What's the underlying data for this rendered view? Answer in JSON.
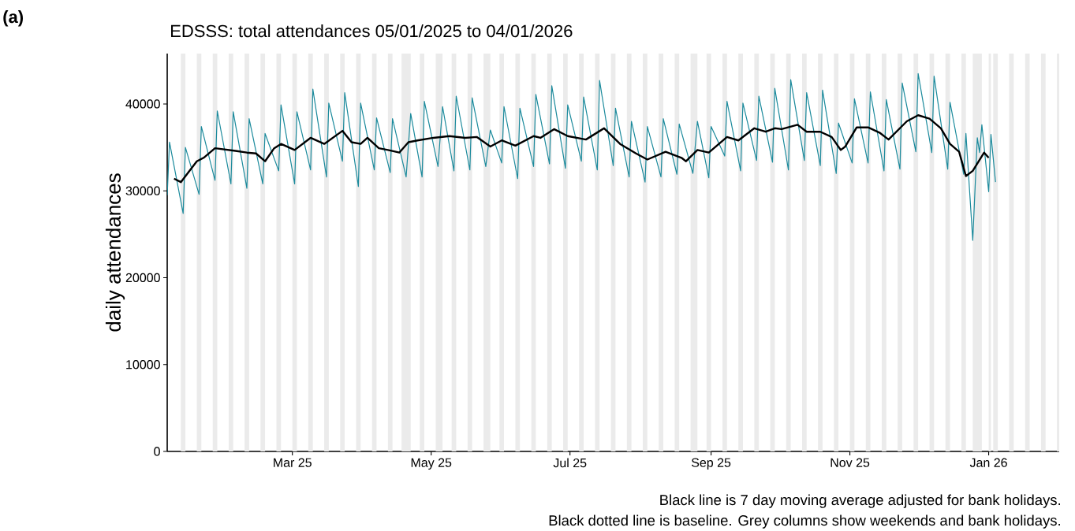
{
  "chart_data": {
    "type": "line",
    "title": "EDSSS: total attendances 05/01/2025 to 04/01/2026",
    "ylabel": "daily attendances",
    "annotations": [
      "(a)",
      "Black line is 7 day moving average adjusted for bank holidays.",
      "Black dotted line is baseline. Grey columns show weekends and bank holidays."
    ],
    "xlim": [
      "2025-01-05",
      "2026-02-01"
    ],
    "ylim": [
      0,
      45800
    ],
    "xticks": [
      {
        "value": "2025-03-01",
        "label": "Mar 25"
      },
      {
        "value": "2025-05-01",
        "label": "May 25"
      },
      {
        "value": "2025-07-01",
        "label": "Jul 25"
      },
      {
        "value": "2025-09-01",
        "label": "Sep 25"
      },
      {
        "value": "2025-11-01",
        "label": "Nov 25"
      },
      {
        "value": "2026-01-01",
        "label": "Jan 26"
      }
    ],
    "yticks": [
      0,
      10000,
      20000,
      30000,
      40000
    ],
    "grid": false,
    "series": [
      {
        "color": "#1b8a9c",
        "x": [
          "2025-01-05",
          "2025-01-06",
          "2025-01-12",
          "2025-01-13",
          "2025-01-19",
          "2025-01-20",
          "2025-01-26",
          "2025-01-27",
          "2025-02-02",
          "2025-02-03",
          "2025-02-09",
          "2025-02-10",
          "2025-02-16",
          "2025-02-17",
          "2025-02-23",
          "2025-02-24",
          "2025-03-02",
          "2025-03-03",
          "2025-03-09",
          "2025-03-10",
          "2025-03-16",
          "2025-03-17",
          "2025-03-23",
          "2025-03-24",
          "2025-03-30",
          "2025-03-31",
          "2025-04-06",
          "2025-04-07",
          "2025-04-13",
          "2025-04-14",
          "2025-04-20",
          "2025-04-22",
          "2025-04-27",
          "2025-04-28",
          "2025-05-04",
          "2025-05-06",
          "2025-05-11",
          "2025-05-12",
          "2025-05-18",
          "2025-05-19",
          "2025-05-25",
          "2025-05-27",
          "2025-06-01",
          "2025-06-02",
          "2025-06-08",
          "2025-06-09",
          "2025-06-15",
          "2025-06-16",
          "2025-06-22",
          "2025-06-23",
          "2025-06-29",
          "2025-06-30",
          "2025-07-06",
          "2025-07-07",
          "2025-07-13",
          "2025-07-14",
          "2025-07-20",
          "2025-07-21",
          "2025-07-27",
          "2025-07-28",
          "2025-08-03",
          "2025-08-04",
          "2025-08-10",
          "2025-08-11",
          "2025-08-17",
          "2025-08-18",
          "2025-08-24",
          "2025-08-26",
          "2025-08-31",
          "2025-09-01",
          "2025-09-07",
          "2025-09-08",
          "2025-09-14",
          "2025-09-15",
          "2025-09-21",
          "2025-09-22",
          "2025-09-28",
          "2025-09-29",
          "2025-10-05",
          "2025-10-06",
          "2025-10-12",
          "2025-10-13",
          "2025-10-19",
          "2025-10-20",
          "2025-10-26",
          "2025-10-27",
          "2025-11-02",
          "2025-11-03",
          "2025-11-09",
          "2025-11-10",
          "2025-11-16",
          "2025-11-17",
          "2025-11-23",
          "2025-11-24",
          "2025-11-30",
          "2025-12-01",
          "2025-12-07",
          "2025-12-08",
          "2025-12-14",
          "2025-12-15",
          "2025-12-21",
          "2025-12-22",
          "2025-12-25",
          "2025-12-27",
          "2025-12-28",
          "2025-12-29",
          "2026-01-01",
          "2026-01-02",
          "2026-01-04"
        ],
        "values": [
          29500,
          35600,
          27400,
          35000,
          29600,
          37400,
          31200,
          39200,
          30800,
          39100,
          30300,
          38300,
          30800,
          36600,
          32300,
          39900,
          30800,
          39100,
          32400,
          41700,
          31600,
          40100,
          33400,
          41300,
          30500,
          40100,
          32400,
          38400,
          32100,
          38300,
          31600,
          38900,
          31600,
          40300,
          32800,
          39700,
          32300,
          40900,
          32400,
          40700,
          32800,
          37000,
          33200,
          39700,
          31400,
          39500,
          32800,
          41100,
          33100,
          42100,
          32600,
          39900,
          33400,
          40800,
          32400,
          42700,
          32900,
          39500,
          31600,
          38000,
          31000,
          37400,
          31600,
          38300,
          31900,
          37700,
          32000,
          38000,
          31500,
          37400,
          34000,
          40300,
          32300,
          40100,
          33500,
          40900,
          33300,
          41800,
          32400,
          42800,
          33500,
          41300,
          32900,
          41600,
          32000,
          37800,
          33200,
          40600,
          33200,
          41400,
          32300,
          40500,
          32500,
          42400,
          34500,
          43500,
          34400,
          43200,
          32500,
          40200,
          31900,
          36600,
          24300,
          36100,
          34400,
          37600,
          29900,
          36500,
          31000
        ]
      },
      {
        "color": "#000000",
        "x": [
          "2025-01-08",
          "2025-01-11",
          "2025-01-18",
          "2025-01-21",
          "2025-01-26",
          "2025-02-04",
          "2025-02-09",
          "2025-02-13",
          "2025-02-17",
          "2025-02-21",
          "2025-02-24",
          "2025-03-02",
          "2025-03-09",
          "2025-03-15",
          "2025-03-23",
          "2025-03-27",
          "2025-03-31",
          "2025-04-03",
          "2025-04-08",
          "2025-04-12",
          "2025-04-17",
          "2025-04-21",
          "2025-04-25",
          "2025-05-02",
          "2025-05-09",
          "2025-05-16",
          "2025-05-21",
          "2025-05-27",
          "2025-06-01",
          "2025-06-07",
          "2025-06-15",
          "2025-06-18",
          "2025-06-24",
          "2025-06-30",
          "2025-07-08",
          "2025-07-16",
          "2025-07-23",
          "2025-07-30",
          "2025-08-04",
          "2025-08-12",
          "2025-08-19",
          "2025-08-21",
          "2025-08-26",
          "2025-08-31",
          "2025-09-08",
          "2025-09-13",
          "2025-09-20",
          "2025-09-25",
          "2025-09-29",
          "2025-10-02",
          "2025-10-09",
          "2025-10-13",
          "2025-10-19",
          "2025-10-24",
          "2025-10-28",
          "2025-10-30",
          "2025-11-04",
          "2025-11-09",
          "2025-11-14",
          "2025-11-18",
          "2025-11-26",
          "2025-12-01",
          "2025-12-06",
          "2025-12-11",
          "2025-12-15",
          "2025-12-19",
          "2025-12-22",
          "2025-12-25",
          "2025-12-30",
          "2026-01-01"
        ],
        "values": [
          31400,
          31000,
          33400,
          33800,
          34900,
          34600,
          34400,
          34300,
          33400,
          34900,
          35400,
          34700,
          36100,
          35400,
          36900,
          35600,
          35400,
          36100,
          34900,
          34700,
          34400,
          35600,
          35800,
          36100,
          36300,
          36100,
          36200,
          35100,
          35800,
          35200,
          36300,
          36100,
          37100,
          36300,
          35900,
          37200,
          35400,
          34300,
          33600,
          34500,
          33800,
          33400,
          34700,
          34400,
          36200,
          35800,
          37200,
          36800,
          37200,
          37100,
          37600,
          36800,
          36800,
          36200,
          34700,
          35100,
          37300,
          37300,
          36700,
          35900,
          38000,
          38700,
          38300,
          37200,
          35400,
          34500,
          31700,
          32300,
          34400,
          33800
        ]
      }
    ],
    "bands": [
      {
        "axis": "x",
        "from": "2025-01-11",
        "to": "2025-01-13",
        "color": "#ebebeb"
      },
      {
        "axis": "x",
        "from": "2025-01-18",
        "to": "2025-01-20",
        "color": "#ebebeb"
      },
      {
        "axis": "x",
        "from": "2025-01-25",
        "to": "2025-01-27",
        "color": "#ebebeb"
      },
      {
        "axis": "x",
        "from": "2025-02-01",
        "to": "2025-02-03",
        "color": "#ebebeb"
      },
      {
        "axis": "x",
        "from": "2025-02-08",
        "to": "2025-02-10",
        "color": "#ebebeb"
      },
      {
        "axis": "x",
        "from": "2025-02-15",
        "to": "2025-02-17",
        "color": "#ebebeb"
      },
      {
        "axis": "x",
        "from": "2025-02-22",
        "to": "2025-02-24",
        "color": "#ebebeb"
      },
      {
        "axis": "x",
        "from": "2025-03-01",
        "to": "2025-03-03",
        "color": "#ebebeb"
      },
      {
        "axis": "x",
        "from": "2025-03-08",
        "to": "2025-03-10",
        "color": "#ebebeb"
      },
      {
        "axis": "x",
        "from": "2025-03-15",
        "to": "2025-03-17",
        "color": "#ebebeb"
      },
      {
        "axis": "x",
        "from": "2025-03-22",
        "to": "2025-03-24",
        "color": "#ebebeb"
      },
      {
        "axis": "x",
        "from": "2025-03-29",
        "to": "2025-03-31",
        "color": "#ebebeb"
      },
      {
        "axis": "x",
        "from": "2025-04-05",
        "to": "2025-04-07",
        "color": "#ebebeb"
      },
      {
        "axis": "x",
        "from": "2025-04-12",
        "to": "2025-04-14",
        "color": "#ebebeb"
      },
      {
        "axis": "x",
        "from": "2025-04-18",
        "to": "2025-04-22",
        "color": "#ebebeb"
      },
      {
        "axis": "x",
        "from": "2025-04-26",
        "to": "2025-04-28",
        "color": "#ebebeb"
      },
      {
        "axis": "x",
        "from": "2025-05-03",
        "to": "2025-05-06",
        "color": "#ebebeb"
      },
      {
        "axis": "x",
        "from": "2025-05-10",
        "to": "2025-05-12",
        "color": "#ebebeb"
      },
      {
        "axis": "x",
        "from": "2025-05-17",
        "to": "2025-05-19",
        "color": "#ebebeb"
      },
      {
        "axis": "x",
        "from": "2025-05-24",
        "to": "2025-05-27",
        "color": "#ebebeb"
      },
      {
        "axis": "x",
        "from": "2025-05-31",
        "to": "2025-06-02",
        "color": "#ebebeb"
      },
      {
        "axis": "x",
        "from": "2025-06-07",
        "to": "2025-06-09",
        "color": "#ebebeb"
      },
      {
        "axis": "x",
        "from": "2025-06-14",
        "to": "2025-06-16",
        "color": "#ebebeb"
      },
      {
        "axis": "x",
        "from": "2025-06-21",
        "to": "2025-06-23",
        "color": "#ebebeb"
      },
      {
        "axis": "x",
        "from": "2025-06-28",
        "to": "2025-06-30",
        "color": "#ebebeb"
      },
      {
        "axis": "x",
        "from": "2025-07-05",
        "to": "2025-07-07",
        "color": "#ebebeb"
      },
      {
        "axis": "x",
        "from": "2025-07-12",
        "to": "2025-07-14",
        "color": "#ebebeb"
      },
      {
        "axis": "x",
        "from": "2025-07-19",
        "to": "2025-07-21",
        "color": "#ebebeb"
      },
      {
        "axis": "x",
        "from": "2025-07-26",
        "to": "2025-07-28",
        "color": "#ebebeb"
      },
      {
        "axis": "x",
        "from": "2025-08-02",
        "to": "2025-08-04",
        "color": "#ebebeb"
      },
      {
        "axis": "x",
        "from": "2025-08-09",
        "to": "2025-08-11",
        "color": "#ebebeb"
      },
      {
        "axis": "x",
        "from": "2025-08-16",
        "to": "2025-08-18",
        "color": "#ebebeb"
      },
      {
        "axis": "x",
        "from": "2025-08-23",
        "to": "2025-08-26",
        "color": "#ebebeb"
      },
      {
        "axis": "x",
        "from": "2025-08-30",
        "to": "2025-09-01",
        "color": "#ebebeb"
      },
      {
        "axis": "x",
        "from": "2025-09-06",
        "to": "2025-09-08",
        "color": "#ebebeb"
      },
      {
        "axis": "x",
        "from": "2025-09-13",
        "to": "2025-09-15",
        "color": "#ebebeb"
      },
      {
        "axis": "x",
        "from": "2025-09-20",
        "to": "2025-09-22",
        "color": "#ebebeb"
      },
      {
        "axis": "x",
        "from": "2025-09-27",
        "to": "2025-09-29",
        "color": "#ebebeb"
      },
      {
        "axis": "x",
        "from": "2025-10-04",
        "to": "2025-10-06",
        "color": "#ebebeb"
      },
      {
        "axis": "x",
        "from": "2025-10-11",
        "to": "2025-10-13",
        "color": "#ebebeb"
      },
      {
        "axis": "x",
        "from": "2025-10-18",
        "to": "2025-10-20",
        "color": "#ebebeb"
      },
      {
        "axis": "x",
        "from": "2025-10-25",
        "to": "2025-10-27",
        "color": "#ebebeb"
      },
      {
        "axis": "x",
        "from": "2025-11-01",
        "to": "2025-11-03",
        "color": "#ebebeb"
      },
      {
        "axis": "x",
        "from": "2025-11-08",
        "to": "2025-11-10",
        "color": "#ebebeb"
      },
      {
        "axis": "x",
        "from": "2025-11-15",
        "to": "2025-11-17",
        "color": "#ebebeb"
      },
      {
        "axis": "x",
        "from": "2025-11-22",
        "to": "2025-11-24",
        "color": "#ebebeb"
      },
      {
        "axis": "x",
        "from": "2025-11-29",
        "to": "2025-12-01",
        "color": "#ebebeb"
      },
      {
        "axis": "x",
        "from": "2025-12-06",
        "to": "2025-12-08",
        "color": "#ebebeb"
      },
      {
        "axis": "x",
        "from": "2025-12-13",
        "to": "2025-12-15",
        "color": "#ebebeb"
      },
      {
        "axis": "x",
        "from": "2025-12-20",
        "to": "2025-12-22",
        "color": "#ebebeb"
      },
      {
        "axis": "x",
        "from": "2025-12-25",
        "to": "2025-12-29",
        "color": "#ebebeb"
      },
      {
        "axis": "x",
        "from": "2026-01-01",
        "to": "2026-01-02",
        "color": "#ebebeb"
      },
      {
        "axis": "x",
        "from": "2026-01-03",
        "to": "2026-01-05",
        "color": "#ebebeb"
      },
      {
        "axis": "x",
        "from": "2026-01-10",
        "to": "2026-01-12",
        "color": "#ebebeb"
      },
      {
        "axis": "x",
        "from": "2026-01-17",
        "to": "2026-01-19",
        "color": "#ebebeb"
      },
      {
        "axis": "x",
        "from": "2026-01-24",
        "to": "2026-01-26",
        "color": "#ebebeb"
      },
      {
        "axis": "x",
        "from": "2026-01-31",
        "to": "2026-02-01",
        "color": "#ebebeb"
      }
    ]
  }
}
